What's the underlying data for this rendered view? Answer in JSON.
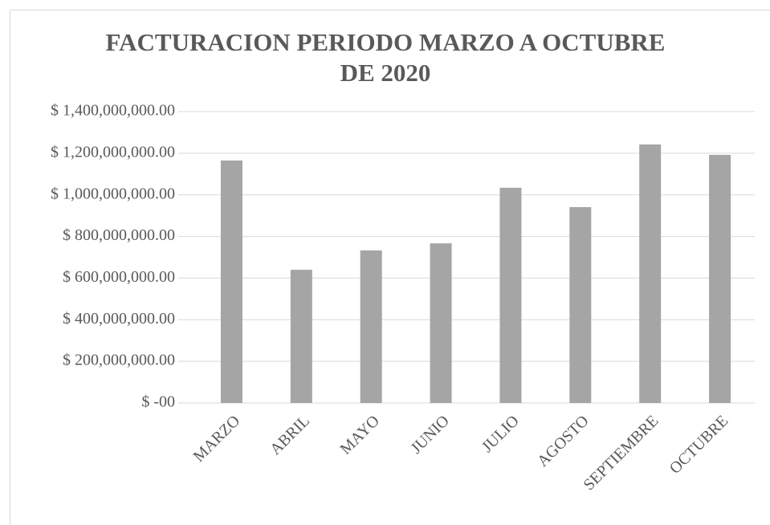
{
  "chart_data": {
    "type": "bar",
    "title": "FACTURACION PERIODO MARZO A OCTUBRE DE 2020",
    "categories": [
      "MARZO",
      "ABRIL",
      "MAYO",
      "JUNIO",
      "JULIO",
      "AGOSTO",
      "SEPTIEMBRE",
      "OCTUBRE"
    ],
    "values": [
      1165000000,
      640000000,
      733000000,
      767000000,
      1034000000,
      941000000,
      1242000000,
      1192000000
    ],
    "color": "#a5a5a5",
    "ylim": [
      0,
      1400000000
    ],
    "yticks": [
      {
        "value": 0,
        "label": "$ -00"
      },
      {
        "value": 200000000,
        "label": "$ 200,000,000.00"
      },
      {
        "value": 400000000,
        "label": "$ 400,000,000.00"
      },
      {
        "value": 600000000,
        "label": "$ 600,000,000.00"
      },
      {
        "value": 800000000,
        "label": "$ 800,000,000.00"
      },
      {
        "value": 1000000000,
        "label": "$ 1,000,000,000.00"
      },
      {
        "value": 1200000000,
        "label": "$ 1,200,000,000.00"
      },
      {
        "value": 1400000000,
        "label": "$ 1,400,000,000.00"
      }
    ],
    "grid": true
  }
}
